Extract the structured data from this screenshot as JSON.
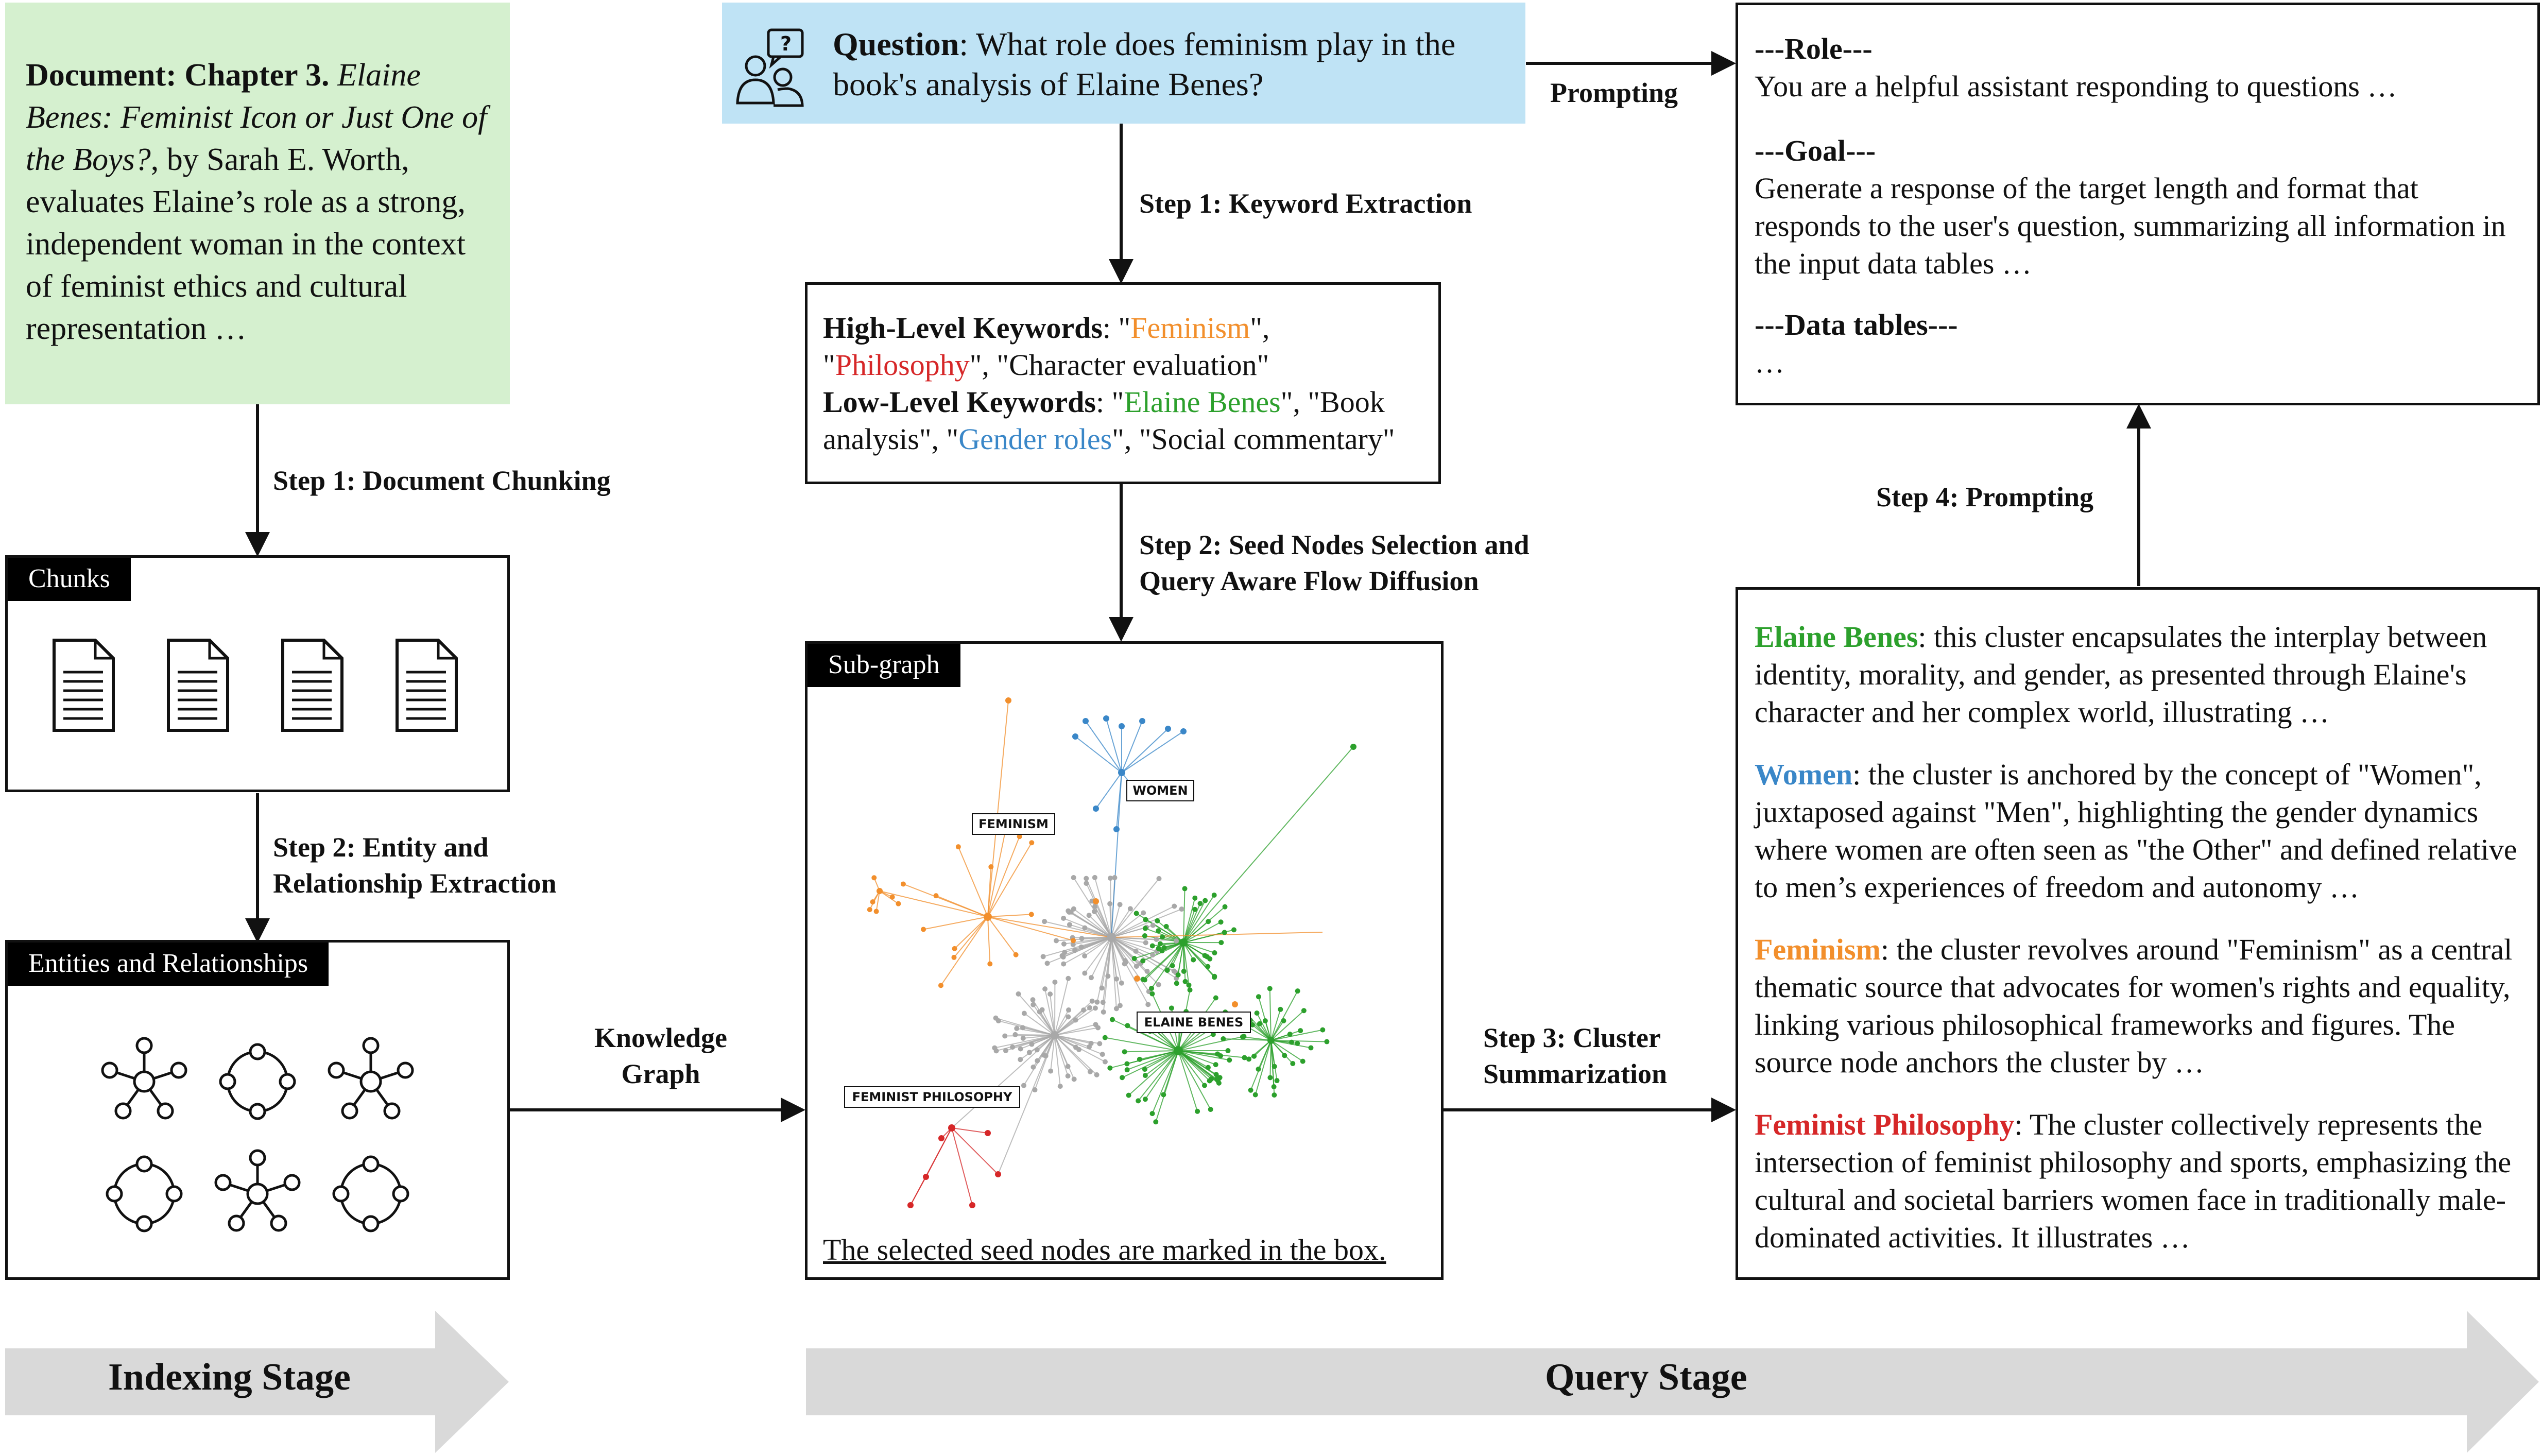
{
  "document": {
    "bold": "Document: Chapter 3.",
    "italic": "Elaine Benes: Feminist Icon or Just One of the Boys?",
    "rest": ", by Sarah E. Worth, evaluates Elaine’s role as a strong, independent woman in the context of feminist ethics and cultural representation …"
  },
  "question": {
    "label": "Question",
    "text": ": What role does feminism play in the book's analysis of Elaine Benes?"
  },
  "steps": {
    "doc_chunking": "Step 1: Document Chunking",
    "entity_extraction": "Step 2: Entity and Relationship Extraction",
    "keyword_extraction": "Step 1: Keyword Extraction",
    "seed_selection": "Step 2: Seed Nodes Selection and Query Aware Flow Diffusion",
    "cluster_summarization": "Step 3: Cluster Summarization",
    "prompting_step": "Step 4: Prompting",
    "prompting": "Prompting",
    "knowledge_graph": "Knowledge Graph"
  },
  "chunks": {
    "title": "Chunks"
  },
  "entities": {
    "title": "Entities and Relationships"
  },
  "keywords": {
    "high_label": "High-Level Keywords",
    "high_sep": ": \"",
    "high_k1": "Feminism",
    "high_mid": "\", \"",
    "high_k2": "Philosophy",
    "high_end": "\", \"Character evaluation\"",
    "low_label": "Low-Level Keywords",
    "low_sep": ": \"",
    "low_k1": "Elaine Benes",
    "low_mid": "\", \"Book analysis\", \"",
    "low_k2": "Gender roles",
    "low_end": "\", \"Social commentary\""
  },
  "subgraph": {
    "title": "Sub-graph",
    "caption": "The selected seed nodes are marked in the box.",
    "labels": {
      "feminism": "FEMINISM",
      "women": "WOMEN",
      "elaine": "ELAINE BENES",
      "feminist_philosophy": "FEMINIST PHILOSOPHY"
    }
  },
  "prompt_box": {
    "role_head": "---Role---",
    "role_text": "You are a helpful assistant responding to questions …",
    "goal_head": "---Goal---",
    "goal_text": "Generate a response of the target length and format that responds to the user's question, summarizing all information in the input data tables …",
    "data_head": "---Data tables---",
    "data_text": "…"
  },
  "clusters": [
    {
      "name": "Elaine Benes",
      "text": ": this cluster encapsulates the interplay between identity, morality, and gender, as presented through Elaine's character and her complex world, illustrating …"
    },
    {
      "name": "Women",
      "text": ": the cluster is anchored by the concept of \"Women\", juxtaposed against \"Men\", highlighting the gender dynamics where women are often seen as \"the Other\" and defined relative to men’s experiences of freedom and autonomy …"
    },
    {
      "name": "Feminism",
      "text": ": the cluster revolves around \"Feminism\" as a central thematic source that advocates for women's rights and equality, linking various philosophical frameworks and figures. The source node anchors the cluster by …"
    },
    {
      "name": "Feminist Philosophy",
      "text": ": The cluster collectively represents the intersection of feminist philosophy and sports, emphasizing the cultural and societal barriers women face in traditionally male-dominated activities. It illustrates …"
    }
  ],
  "stages": {
    "indexing": "Indexing Stage",
    "query": "Query Stage"
  },
  "colors": {
    "green_box": "#d5f0cf",
    "blue_box": "#bfe3f5",
    "arrow_gray": "#d9d9d9",
    "elaine": "#2ca02c",
    "women": "#3a87c8",
    "feminism": "#f28f2c",
    "philosophy": "#d62728"
  }
}
